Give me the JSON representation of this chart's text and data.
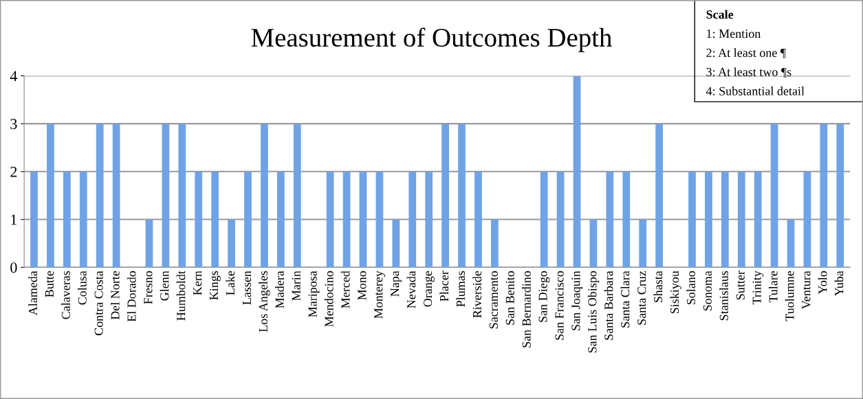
{
  "chart_data": {
    "type": "bar",
    "title": "Measurement of Outcomes Depth",
    "categories": [
      "Alameda",
      "Butte",
      "Calaveras",
      "Colusa",
      "Contra Costa",
      "Del Norte",
      "El Dorado",
      "Fresno",
      "Glenn",
      "Humboldt",
      "Kern",
      "Kings",
      "Lake",
      "Lassen",
      "Los Angeles",
      "Madera",
      "Marin",
      "Mariposa",
      "Mendocino",
      "Merced",
      "Mono",
      "Monterey",
      "Napa",
      "Nevada",
      "Orange",
      "Placer",
      "Plumas",
      "Riverside",
      "Sacramento",
      "San Benito",
      "San Bernardino",
      "San Diego",
      "San Francisco",
      "San Joaquin",
      "San Luis Obispo",
      "Santa Barbara",
      "Santa Clara",
      "Santa Cruz",
      "Shasta",
      "Siskiyou",
      "Solano",
      "Sonoma",
      "Stanislaus",
      "Sutter",
      "Trinity",
      "Tulare",
      "Tuolumne",
      "Ventura",
      "Yolo",
      "Yuba"
    ],
    "values": [
      2,
      3,
      2,
      2,
      3,
      3,
      0,
      1,
      3,
      3,
      2,
      2,
      1,
      2,
      3,
      2,
      3,
      0,
      2,
      2,
      2,
      2,
      1,
      2,
      2,
      3,
      3,
      2,
      1,
      0,
      0,
      2,
      2,
      4,
      1,
      2,
      2,
      1,
      3,
      0,
      2,
      2,
      2,
      2,
      2,
      3,
      1,
      2,
      3,
      3
    ],
    "color": "#6fa3e6",
    "ylim": [
      0,
      4
    ],
    "yticks": [
      0,
      1,
      2,
      3,
      4
    ],
    "grid": "y",
    "annotations": [
      "Scale",
      "1: Mention",
      "2: At least one ¶",
      "3: At least two ¶s",
      "4: Substantial detail"
    ]
  }
}
